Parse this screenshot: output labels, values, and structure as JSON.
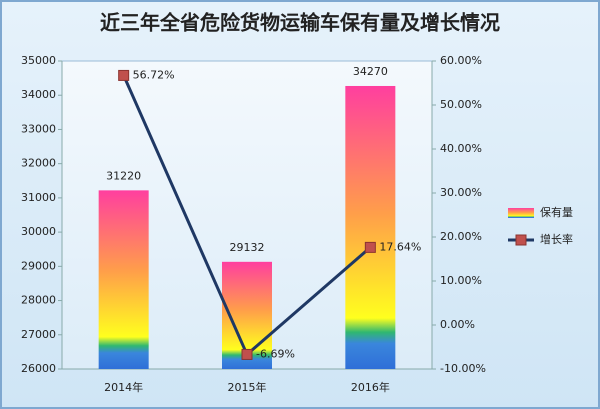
{
  "chart_data": {
    "type": "bar-line",
    "title": "近三年全省危险货物运输车保有量及增长情况",
    "categories": [
      "2014年",
      "2015年",
      "2016年"
    ],
    "series": [
      {
        "name": "保有量",
        "type": "bar",
        "color": "#ff3f9f",
        "values": [
          31220,
          29132,
          34270
        ]
      },
      {
        "name": "增长率",
        "type": "line",
        "axis": "y2",
        "color": "#1f3864",
        "marker_color": "#c0504d",
        "values": [
          56.72,
          -6.69,
          17.64
        ],
        "value_labels": [
          "56.72%",
          "-6.69%",
          "17.64%"
        ]
      }
    ],
    "ylim": [
      26000,
      35000
    ],
    "yticks": [
      26000,
      27000,
      28000,
      29000,
      30000,
      31000,
      32000,
      33000,
      34000,
      35000
    ],
    "y2lim": [
      -10,
      60
    ],
    "y2ticks": [
      {
        "value": -10,
        "label": "-10.00%"
      },
      {
        "value": 0,
        "label": "0.00%"
      },
      {
        "value": 10,
        "label": "10.00%"
      },
      {
        "value": 20,
        "label": "20.00%"
      },
      {
        "value": 30,
        "label": "30.00%"
      },
      {
        "value": 40,
        "label": "40.00%"
      },
      {
        "value": 50,
        "label": "50.00%"
      },
      {
        "value": 60,
        "label": "60.00%"
      }
    ],
    "grid": false,
    "legend": "right"
  }
}
